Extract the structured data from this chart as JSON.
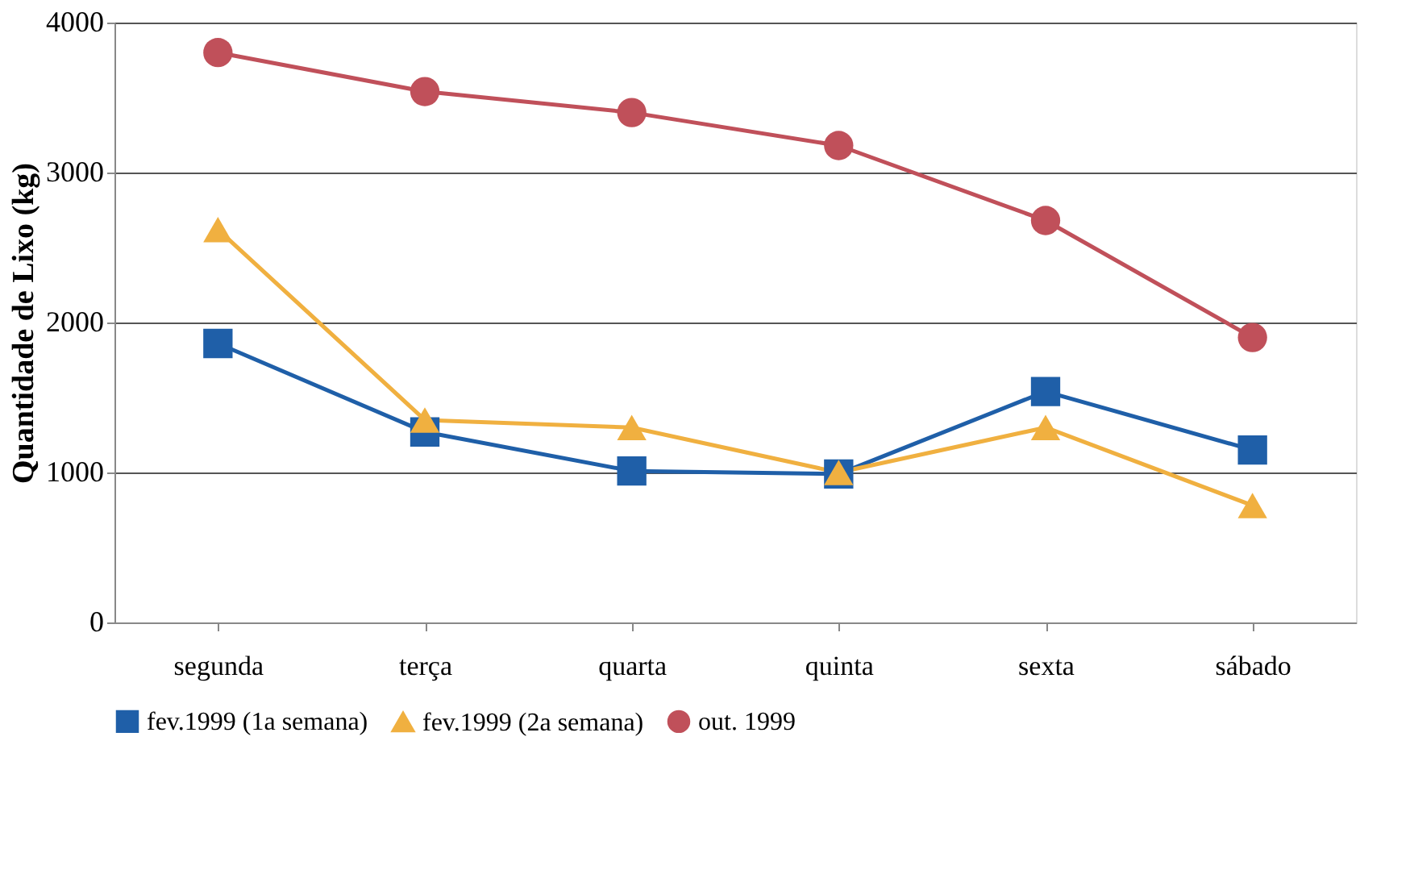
{
  "chart_data": {
    "type": "line",
    "ylabel": "Quantidade de Lixo (kg)",
    "categories": [
      "segunda",
      "terça",
      "quarta",
      "quinta",
      "sexta",
      "sábado"
    ],
    "series": [
      {
        "name": "fev.1999 (1a semana)",
        "color": "#1f5fa8",
        "marker": "square",
        "values": [
          1860,
          1270,
          1010,
          990,
          1540,
          1150
        ]
      },
      {
        "name": "fev.1999 (2a semana)",
        "color": "#f0b040",
        "marker": "triangle",
        "values": [
          2620,
          1350,
          1300,
          1000,
          1300,
          780
        ]
      },
      {
        "name": "out. 1999",
        "color": "#c0505a",
        "marker": "circle",
        "values": [
          3800,
          3540,
          3400,
          3180,
          2680,
          1900
        ]
      }
    ],
    "ylim": [
      0,
      4000
    ],
    "yticks": [
      0,
      1000,
      2000,
      3000,
      4000
    ],
    "grid": "y",
    "legend": "bottom"
  }
}
